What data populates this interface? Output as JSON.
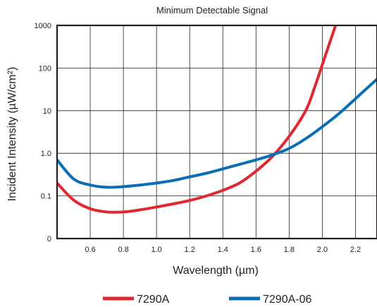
{
  "chart_data": {
    "type": "line",
    "title": "Minimum Detectable Signal",
    "xlabel": "Wavelength (µm)",
    "ylabel": "Incident Intensity (µW/cm²)",
    "xlim": [
      0.4,
      2.33
    ],
    "ylim": [
      0.01,
      1000
    ],
    "yscale": "log",
    "grid": true,
    "legend_position": "bottom",
    "x_ticks": [
      {
        "value": 0.6,
        "label": "0.6"
      },
      {
        "value": 0.8,
        "label": "0.8"
      },
      {
        "value": 1.0,
        "label": "1.0"
      },
      {
        "value": 1.2,
        "label": "1.2"
      },
      {
        "value": 1.4,
        "label": "1.4"
      },
      {
        "value": 1.6,
        "label": "1.6"
      },
      {
        "value": 1.8,
        "label": "1.8"
      },
      {
        "value": 2.0,
        "label": "2.0"
      },
      {
        "value": 2.2,
        "label": "2.2"
      }
    ],
    "y_ticks": [
      {
        "value": 0.01,
        "label": "0"
      },
      {
        "value": 0.1,
        "label": "0.1"
      },
      {
        "value": 1,
        "label": "1.0"
      },
      {
        "value": 10,
        "label": "10"
      },
      {
        "value": 100,
        "label": "100"
      },
      {
        "value": 1000,
        "label": "1000"
      }
    ],
    "series": [
      {
        "name": "7290A",
        "color": "#e0282f",
        "points": [
          [
            0.4,
            0.2
          ],
          [
            0.5,
            0.08
          ],
          [
            0.6,
            0.05
          ],
          [
            0.7,
            0.042
          ],
          [
            0.8,
            0.042
          ],
          [
            0.9,
            0.047
          ],
          [
            1.0,
            0.055
          ],
          [
            1.1,
            0.065
          ],
          [
            1.2,
            0.078
          ],
          [
            1.3,
            0.1
          ],
          [
            1.4,
            0.135
          ],
          [
            1.5,
            0.2
          ],
          [
            1.6,
            0.38
          ],
          [
            1.7,
            0.85
          ],
          [
            1.8,
            2.5
          ],
          [
            1.9,
            10
          ],
          [
            1.95,
            32
          ],
          [
            2.0,
            120
          ],
          [
            2.05,
            450
          ],
          [
            2.08,
            1000
          ]
        ]
      },
      {
        "name": "7290A-06",
        "color": "#0a6eb4",
        "points": [
          [
            0.4,
            0.7
          ],
          [
            0.5,
            0.25
          ],
          [
            0.6,
            0.18
          ],
          [
            0.7,
            0.16
          ],
          [
            0.8,
            0.165
          ],
          [
            0.9,
            0.18
          ],
          [
            1.0,
            0.2
          ],
          [
            1.1,
            0.23
          ],
          [
            1.2,
            0.28
          ],
          [
            1.3,
            0.34
          ],
          [
            1.4,
            0.43
          ],
          [
            1.5,
            0.55
          ],
          [
            1.6,
            0.7
          ],
          [
            1.7,
            0.92
          ],
          [
            1.8,
            1.3
          ],
          [
            1.9,
            2.2
          ],
          [
            2.0,
            4.2
          ],
          [
            2.1,
            8.5
          ],
          [
            2.2,
            19
          ],
          [
            2.33,
            55
          ]
        ]
      }
    ]
  }
}
